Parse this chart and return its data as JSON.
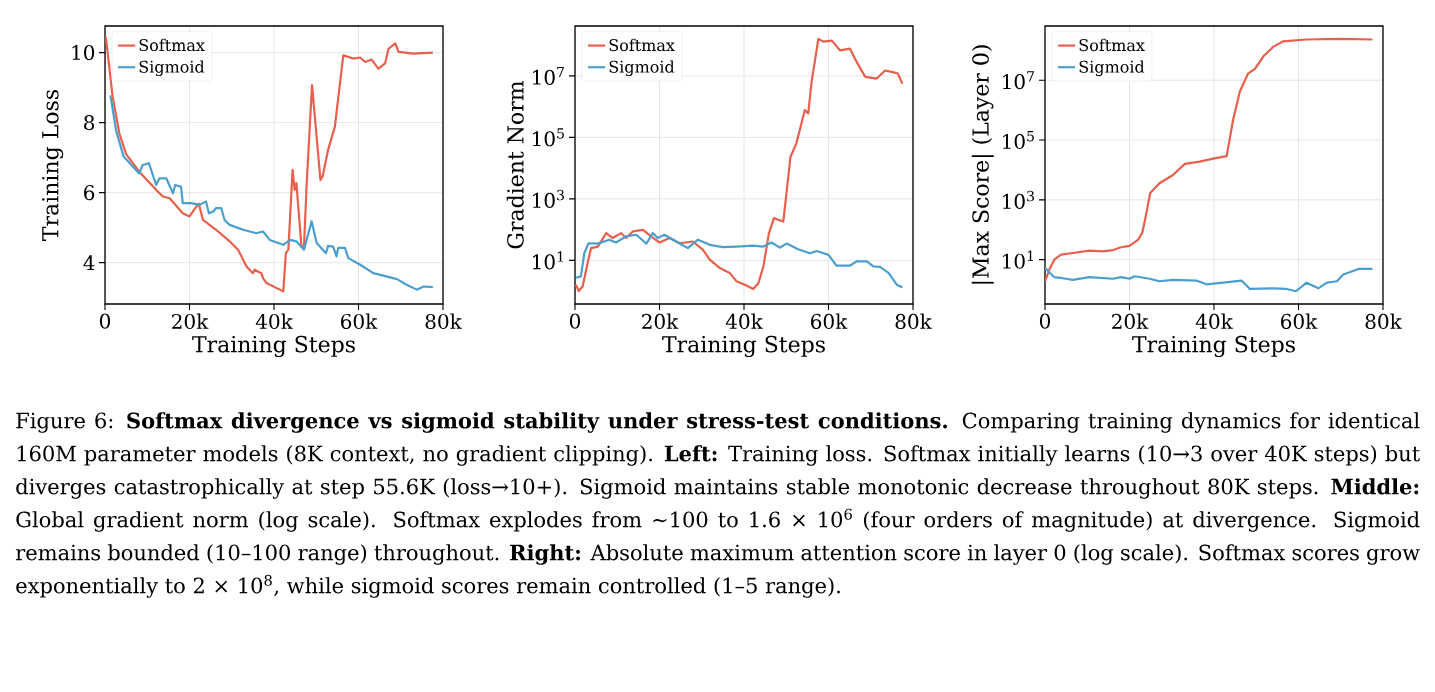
{
  "chart_data": [
    {
      "type": "line",
      "xlabel": "Training Steps",
      "ylabel": "Training Loss",
      "xlim": [
        0,
        80000
      ],
      "ylim": [
        2.82,
        10.76
      ],
      "xticks": [
        0,
        {
          "value": 20000,
          "label": "20k"
        },
        {
          "value": 40000,
          "label": "40k"
        },
        {
          "value": 60000,
          "label": "60k"
        },
        {
          "value": 80000,
          "label": "80k"
        }
      ],
      "yticks": [
        4,
        6,
        8,
        10
      ],
      "grid": true,
      "legend": "top left",
      "series": [
        {
          "name": "Softmax",
          "color": "#e8604c",
          "x": [
            200,
            1800,
            3400,
            5000,
            8100,
            12100,
            13700,
            15300,
            18400,
            20000,
            21600,
            22200,
            23200,
            26300,
            29500,
            31500,
            33500,
            35000,
            35400,
            37000,
            37400,
            38200,
            42200,
            42800,
            43400,
            44400,
            44900,
            45300,
            46500,
            47100,
            47700,
            49000,
            51000,
            51500,
            52800,
            54400,
            56400,
            58800,
            60400,
            61600,
            63100,
            64700,
            66300,
            67100,
            68700,
            69500,
            73000,
            77600
          ],
          "values": [
            10.45,
            8.74,
            7.69,
            7.1,
            6.6,
            6.08,
            5.89,
            5.84,
            5.41,
            5.32,
            5.6,
            5.68,
            5.22,
            4.94,
            4.61,
            4.37,
            3.89,
            3.7,
            3.8,
            3.7,
            3.56,
            3.42,
            3.18,
            4.27,
            4.37,
            6.65,
            6.08,
            6.27,
            4.46,
            4.46,
            6.17,
            9.07,
            6.36,
            6.46,
            7.22,
            7.88,
            9.92,
            9.83,
            9.86,
            9.73,
            9.8,
            9.54,
            9.69,
            10.11,
            10.26,
            10.02,
            9.97,
            10.0
          ]
        },
        {
          "name": "Sigmoid",
          "color": "#4b9fcf",
          "x": [
            1300,
            2600,
            4400,
            8100,
            8900,
            10400,
            12100,
            12900,
            14500,
            16100,
            16600,
            18000,
            18400,
            20400,
            22400,
            23900,
            24600,
            25600,
            26300,
            27500,
            28300,
            29500,
            32700,
            35800,
            37400,
            39000,
            42200,
            43800,
            45300,
            47100,
            48900,
            50100,
            52300,
            52800,
            54000,
            54800,
            55200,
            56800,
            57600,
            60400,
            63500,
            65900,
            69100,
            71400,
            73800,
            75400,
            77600
          ],
          "values": [
            8.78,
            7.79,
            7.03,
            6.55,
            6.79,
            6.84,
            6.22,
            6.41,
            6.41,
            5.98,
            6.22,
            6.17,
            5.7,
            5.7,
            5.65,
            5.75,
            5.41,
            5.46,
            5.56,
            5.56,
            5.22,
            5.08,
            4.94,
            4.84,
            4.89,
            4.65,
            4.51,
            4.65,
            4.61,
            4.37,
            5.18,
            4.56,
            4.27,
            4.48,
            4.46,
            4.18,
            4.42,
            4.42,
            4.13,
            3.94,
            3.7,
            3.63,
            3.53,
            3.37,
            3.23,
            3.32,
            3.3
          ]
        }
      ]
    },
    {
      "type": "line",
      "xlabel": "Training Steps",
      "ylabel": "Gradient Norm",
      "log": "y",
      "xlim": [
        0,
        80000
      ],
      "ylim": [
        0.38,
        420000000
      ],
      "xticks": [
        0,
        {
          "value": 20000,
          "label": "20k"
        },
        {
          "value": 40000,
          "label": "40k"
        },
        {
          "value": 60000,
          "label": "60k"
        },
        {
          "value": 80000,
          "label": "80k"
        }
      ],
      "yticks": [
        {
          "value": 10,
          "label": "10$^{1}$"
        },
        {
          "value": 1000,
          "label": "10$^{3}$"
        },
        {
          "value": 100000,
          "label": "10$^{5}$"
        },
        {
          "value": 10000000,
          "label": "10$^{7}$"
        }
      ],
      "grid": true,
      "legend": "top left",
      "series": [
        {
          "name": "Softmax",
          "color": "#e8604c",
          "x": [
            200,
            900,
            1800,
            3000,
            3800,
            5400,
            7400,
            8900,
            10900,
            12100,
            13700,
            16100,
            18000,
            20000,
            22400,
            24800,
            27900,
            30300,
            31900,
            34300,
            36600,
            38200,
            40200,
            42200,
            43400,
            44600,
            45900,
            47100,
            48100,
            49300,
            51000,
            52400,
            54000,
            54400,
            55200,
            56000,
            56800,
            57600,
            58800,
            60800,
            62700,
            65100,
            66700,
            68700,
            71400,
            73400,
            75400,
            76400,
            77500
          ],
          "values": [
            1.6,
            1.0,
            1.4,
            8.2,
            25,
            28,
            77,
            53,
            77,
            53,
            87,
            98,
            60,
            38,
            53,
            36,
            41,
            22,
            10.5,
            5.6,
            3.9,
            2.1,
            1.6,
            1.17,
            1.8,
            6.4,
            77,
            236,
            208,
            183,
            23000,
            64000,
            470000,
            770000,
            600000,
            6400000,
            32000000,
            160000000,
            130000000,
            140000000,
            68000000,
            77000000,
            28000000,
            9300000,
            8200000,
            15000000,
            13000000,
            12000000,
            5600000
          ]
        },
        {
          "name": "Sigmoid",
          "color": "#4b9fcf",
          "x": [
            200,
            1400,
            2200,
            3200,
            5400,
            8100,
            9700,
            12100,
            14500,
            16900,
            18400,
            19600,
            21200,
            23900,
            26700,
            29100,
            31900,
            35000,
            38200,
            42200,
            44600,
            46500,
            48500,
            50100,
            52800,
            55600,
            57200,
            60000,
            61900,
            65100,
            66700,
            69100,
            70600,
            72200,
            74200,
            76200,
            77500
          ],
          "values": [
            2.7,
            3.0,
            17,
            36,
            35,
            47,
            38,
            60,
            68,
            35,
            77,
            53,
            68,
            41,
            25,
            47,
            32,
            27,
            28,
            30,
            28,
            38,
            26,
            35,
            23,
            17,
            20,
            15,
            6.7,
            6.7,
            9.3,
            9.3,
            6.4,
            6.1,
            3.9,
            1.6,
            1.3
          ]
        }
      ]
    },
    {
      "type": "line",
      "xlabel": "Training Steps",
      "ylabel": "|Max Score| (Layer 0)",
      "log": "y",
      "xlim": [
        0,
        80000
      ],
      "ylim": [
        0.33,
        650000000
      ],
      "xticks": [
        0,
        {
          "value": 20000,
          "label": "20k"
        },
        {
          "value": 40000,
          "label": "40k"
        },
        {
          "value": 60000,
          "label": "60k"
        },
        {
          "value": 80000,
          "label": "80k"
        }
      ],
      "yticks": [
        {
          "value": 10,
          "label": "10$^{1}$"
        },
        {
          "value": 1000,
          "label": "10$^{3}$"
        },
        {
          "value": 100000,
          "label": "10$^{5}$"
        },
        {
          "value": 10000000,
          "label": "10$^{7}$"
        }
      ],
      "grid": true,
      "legend": "top left",
      "series": [
        {
          "name": "Softmax",
          "color": "#e8604c",
          "x": [
            0,
            1000,
            2200,
            3800,
            6600,
            10500,
            13700,
            16100,
            18000,
            20000,
            22000,
            23000,
            24000,
            24900,
            27100,
            30300,
            33100,
            36600,
            39800,
            43000,
            44500,
            46100,
            48100,
            49700,
            51700,
            54000,
            56400,
            61900,
            69900,
            77500
          ],
          "values": [
            1.9,
            4.6,
            10,
            14.7,
            16.7,
            20,
            19,
            21,
            26,
            29,
            46,
            77,
            360,
            1700,
            3600,
            6800,
            16000,
            19000,
            24000,
            29000,
            460000,
            4100000,
            17000000,
            24000000,
            63000000,
            130000000,
            200000000,
            230000000,
            240000000,
            230000000
          ]
        },
        {
          "name": "Sigmoid",
          "color": "#4b9fcf",
          "x": [
            0,
            2200,
            4200,
            6600,
            10500,
            16100,
            18000,
            20000,
            21200,
            24800,
            27100,
            30300,
            35800,
            38200,
            42200,
            46500,
            48500,
            54000,
            57200,
            59400,
            61900,
            64700,
            66700,
            69100,
            70600,
            74200,
            77500
          ],
          "values": [
            5.3,
            2.6,
            2.4,
            2.1,
            2.6,
            2.3,
            2.6,
            2.3,
            2.8,
            2.3,
            1.9,
            2.1,
            2.0,
            1.5,
            1.7,
            2.0,
            1.05,
            1.1,
            1.05,
            0.88,
            1.7,
            1.1,
            1.7,
            1.9,
            3.2,
            4.9,
            4.9
          ]
        }
      ],
      "annotations": [
        "Figure 6: **Softmax divergence vs sigmoid stability under stress-test conditions.** Comparing training dynamics for identical 160M parameter models (8K context, no gradient clipping). **Left:** Training loss. Softmax initially learns (10→3 over 40K steps) but diverges catastrophically at step 55.6K (loss→10+). Sigmoid maintains stable monotonic decrease throughout 80K steps. **Middle:** Global gradient norm (log scale). Softmax explodes from ∼100 to 1.6 × 10$^{6}$ (four orders of magnitude) at divergence. Sigmoid remains bounded (10–100 range) throughout. **Right:** Absolute maximum attention score in layer 0 (log scale). Softmax scores grow exponentially to 2 × 10$^{8}$, while sigmoid scores remain controlled (1–5 range)."
      ]
    }
  ]
}
